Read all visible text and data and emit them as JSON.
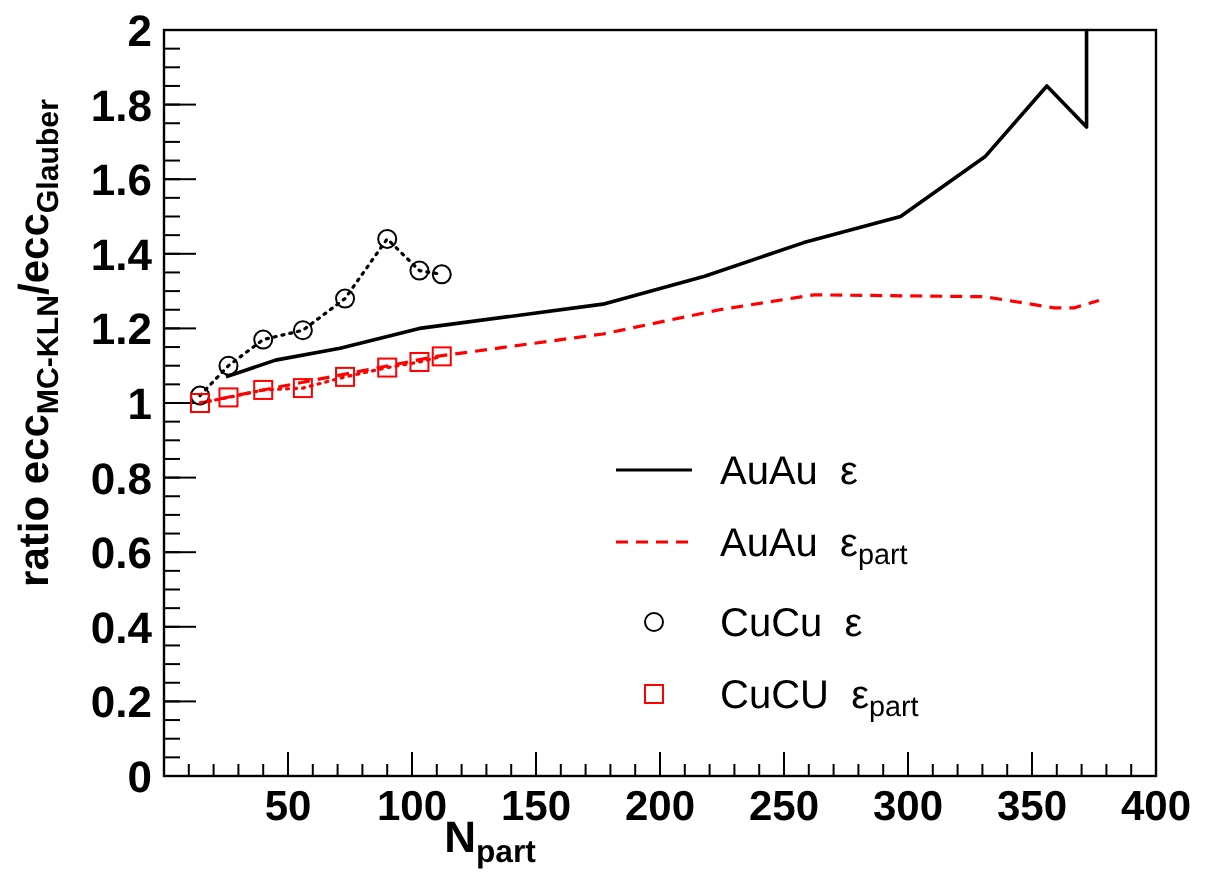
{
  "chart_data": {
    "type": "line",
    "xlabel": "N$_{part}$",
    "ylabel": "ratio ecc$_{MC-KLN}$/ecc$_{Glauber}$",
    "xlim": [
      0,
      400
    ],
    "ylim": [
      0,
      2
    ],
    "xticks": [
      50,
      100,
      150,
      200,
      250,
      300,
      350,
      400
    ],
    "yticks": [
      0,
      0.2,
      0.4,
      0.6,
      0.8,
      1,
      1.2,
      1.4,
      1.6,
      1.8,
      2
    ],
    "legend": "bottom right",
    "grid": false,
    "series": [
      {
        "name": "AuAu  ε",
        "color": "#000000",
        "line_style": "solid",
        "marker": "none",
        "x": [
          25,
          45,
          71,
          103,
          177,
          218,
          258,
          297,
          331,
          356,
          372,
          372
        ],
        "values": [
          1.07,
          1.115,
          1.147,
          1.2,
          1.265,
          1.34,
          1.43,
          1.5,
          1.66,
          1.85,
          1.74,
          2
        ]
      },
      {
        "name": "AuAu  ε$_{part}$",
        "color": "#ff0000",
        "line_style": "dashed",
        "marker": "none",
        "x": [
          14.5,
          40,
          110,
          177,
          224,
          262,
          331,
          359,
          367,
          377
        ],
        "values": [
          1.0,
          1.035,
          1.125,
          1.185,
          1.25,
          1.29,
          1.285,
          1.255,
          1.255,
          1.275
        ]
      },
      {
        "name": "CuCu  ε",
        "color": "#000000",
        "line_style": "dotted",
        "marker": "circle",
        "x": [
          14.5,
          26,
          40,
          56,
          73,
          90,
          103,
          112
        ],
        "values": [
          1.02,
          1.1,
          1.17,
          1.195,
          1.28,
          1.44,
          1.355,
          1.345
        ]
      },
      {
        "name": "CuCU  ε$_{part}$",
        "color": "#ff0000",
        "line_style": "dotted",
        "marker": "square",
        "x": [
          14.5,
          26,
          40,
          56,
          73,
          90,
          103,
          112
        ],
        "values": [
          1.0,
          1.015,
          1.035,
          1.04,
          1.07,
          1.095,
          1.11,
          1.125
        ]
      }
    ]
  }
}
